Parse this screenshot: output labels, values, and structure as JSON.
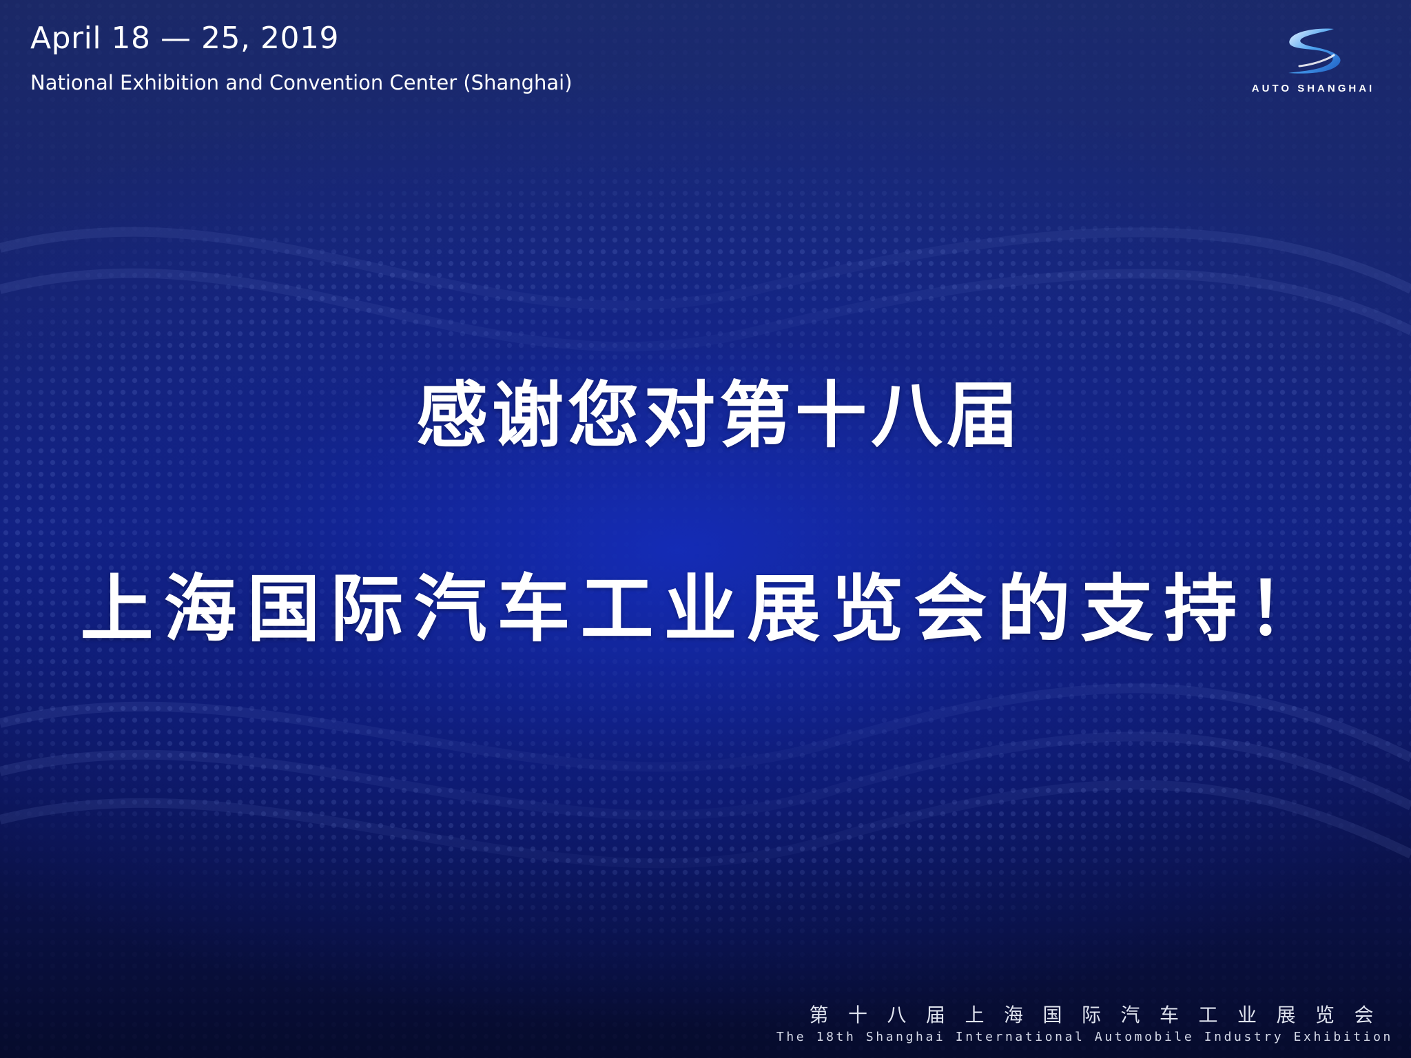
{
  "event": {
    "date": "April 18 — 25, 2019",
    "venue": "National Exhibition and Convention Center (Shanghai)"
  },
  "logo": {
    "icon": "stylized-s-logo-icon",
    "text": "AUTO SHANGHAI"
  },
  "headline": {
    "line1": "感谢您对第十八届",
    "line2": "上海国际汽车工业展览会的支持！"
  },
  "footer": {
    "title_cn": "第十八届上海国际汽车工业展览会",
    "title_en": "The 18th Shanghai International Automobile Industry Exhibition"
  },
  "colors": {
    "background_top": "#1b2864",
    "background_center": "#1430c0",
    "background_bottom": "#060b2c",
    "text": "#ffffff",
    "logo_blue": "#2a7fd9"
  }
}
